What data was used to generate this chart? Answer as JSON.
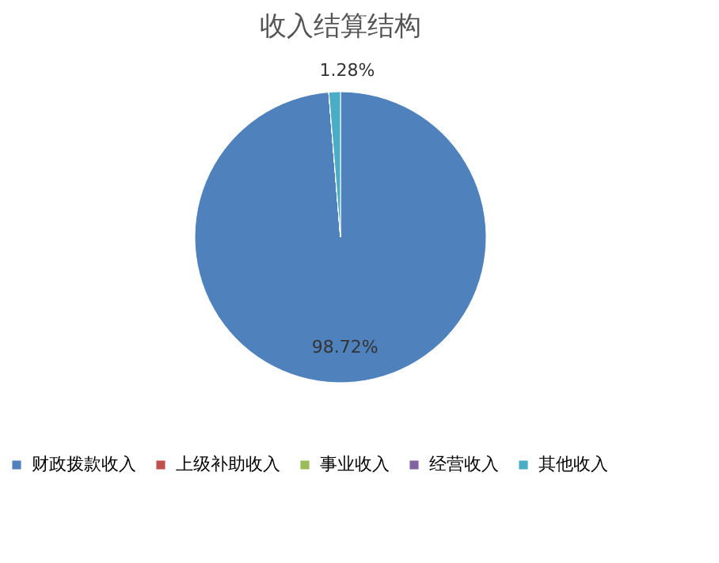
{
  "chart_data": {
    "type": "pie",
    "title": "收入结算结构",
    "categories": [
      "财政拨款收入",
      "上级补助收入",
      "事业收入",
      "经营收入",
      "其他收入"
    ],
    "values": [
      98.72,
      0,
      0,
      0,
      1.28
    ],
    "colors": [
      "#4f81bd",
      "#c0504d",
      "#9bbb59",
      "#8064a2",
      "#4bacc6"
    ],
    "value_labels": [
      "98.72%",
      null,
      null,
      null,
      "1.28%"
    ],
    "legend": "bottom"
  }
}
